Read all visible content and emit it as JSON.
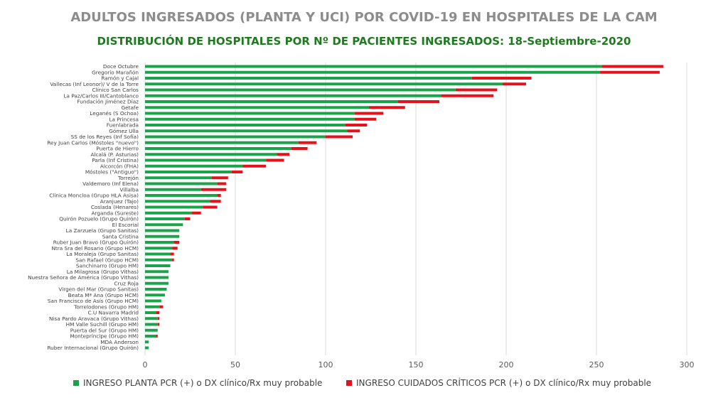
{
  "chart_data": {
    "type": "bar",
    "orientation": "horizontal",
    "stacked": true,
    "title": "ADULTOS INGRESADOS (PLANTA Y UCI) POR COVID-19 EN HOSPITALES DE LA CAM",
    "subtitle": "DISTRIBUCIÓN DE HOSPITALES POR Nº DE PACIENTES INGRESADOS: 18-Septiembre-2020",
    "xlim": [
      0,
      300
    ],
    "xticks": [
      0,
      50,
      100,
      150,
      200,
      250,
      300
    ],
    "grid": true,
    "legend_position": "bottom",
    "categories": [
      "Doce Octubre",
      "Gregorio Marañón",
      "Ramón y Cajal",
      "Vallecas (Inf Leonor)/ V de la Torre",
      "Clínico San Carlos",
      "La Paz/Carlos III/Cantoblanco",
      "Fundación Jiménez Díaz",
      "Getafe",
      "Leganés (S Ochoa)",
      "La Princesa",
      "Fuenlabrada",
      "Gómez Ulla",
      "SS de los Reyes (Inf Sofía)",
      "Rey Juan Carlos (Móstoles \"nuevo\")",
      "Puerta de Hierro",
      "Alcalá (P. Asturias)",
      "Parla (Inf Cristina)",
      "Alcorcón (FHA)",
      "Móstoles (\"Antiguo\")",
      "Torrejón",
      "Valdemoro (Inf Elena)",
      "Villalba",
      "Clínica Moncloa (Grupo HLA Asisa)",
      "Aranjuez (Tajo)",
      "Coslada (Henares)",
      "Arganda (Sureste)",
      "Quirón Pozuelo (Grupo Quirón)",
      "El Escorial",
      "La Zarzuela (Grupo Sanitas)",
      "Santa Cristina",
      "Ruber Juan Bravo (Grupo Quirón)",
      "Ntra Sra del Rosario (Grupo HCM)",
      "La Moraleja (Grupo Sanitas)",
      "San Rafael (Grupo HCM)",
      "Sanchinarro (Grupo HM)",
      "La Milagrosa (Grupo Vithas)",
      "Nuestra Señora de América (Grupo Vithas)",
      "Cruz Roja",
      "Virgen del Mar (Grupo Sanitas)",
      "Beata Mª Ana (Grupo HCM)",
      "San Francisco de Asís (Grupo HCM)",
      "Torrelodones (Grupo HM)",
      "C.U Navarra Madrid",
      "Nisa Pardo Aravaca (Grupo Vithas)",
      "HM Valle Suchill (Grupo HM)",
      "Puerta del Sur (Grupo HM)",
      "Montepríncipe (Grupo HM)",
      "MDA Anderson",
      "Ruber Internacional (Grupo Quirón)"
    ],
    "series": [
      {
        "name": "INGRESO PLANTA PCR (+) o DX clínico/Rx muy probable",
        "color": "#1aa34a",
        "values": [
          253,
          252,
          181,
          198,
          172,
          164,
          140,
          124,
          116,
          116,
          111,
          112,
          100,
          85,
          81,
          73,
          67,
          54,
          48,
          37,
          40,
          31,
          40,
          36,
          32,
          26,
          22,
          21,
          19,
          19,
          16,
          15,
          14,
          15,
          14,
          13,
          13,
          13,
          12,
          11,
          9,
          8,
          6,
          7,
          7,
          7,
          6,
          2,
          2
        ]
      },
      {
        "name": "INGRESO CUIDADOS CRÍTICOS PCR (+) o DX clínico/Rx muy probable",
        "color": "#e3121b",
        "values": [
          34,
          33,
          33,
          13,
          23,
          29,
          23,
          20,
          16,
          12,
          12,
          7,
          15,
          10,
          9,
          7,
          10,
          13,
          6,
          9,
          5,
          14,
          2,
          6,
          8,
          5,
          3,
          0,
          0,
          0,
          3,
          3,
          2,
          1,
          0,
          0,
          0,
          0,
          0,
          0,
          0,
          2,
          2,
          1,
          1,
          0,
          1,
          0,
          0
        ]
      }
    ]
  }
}
